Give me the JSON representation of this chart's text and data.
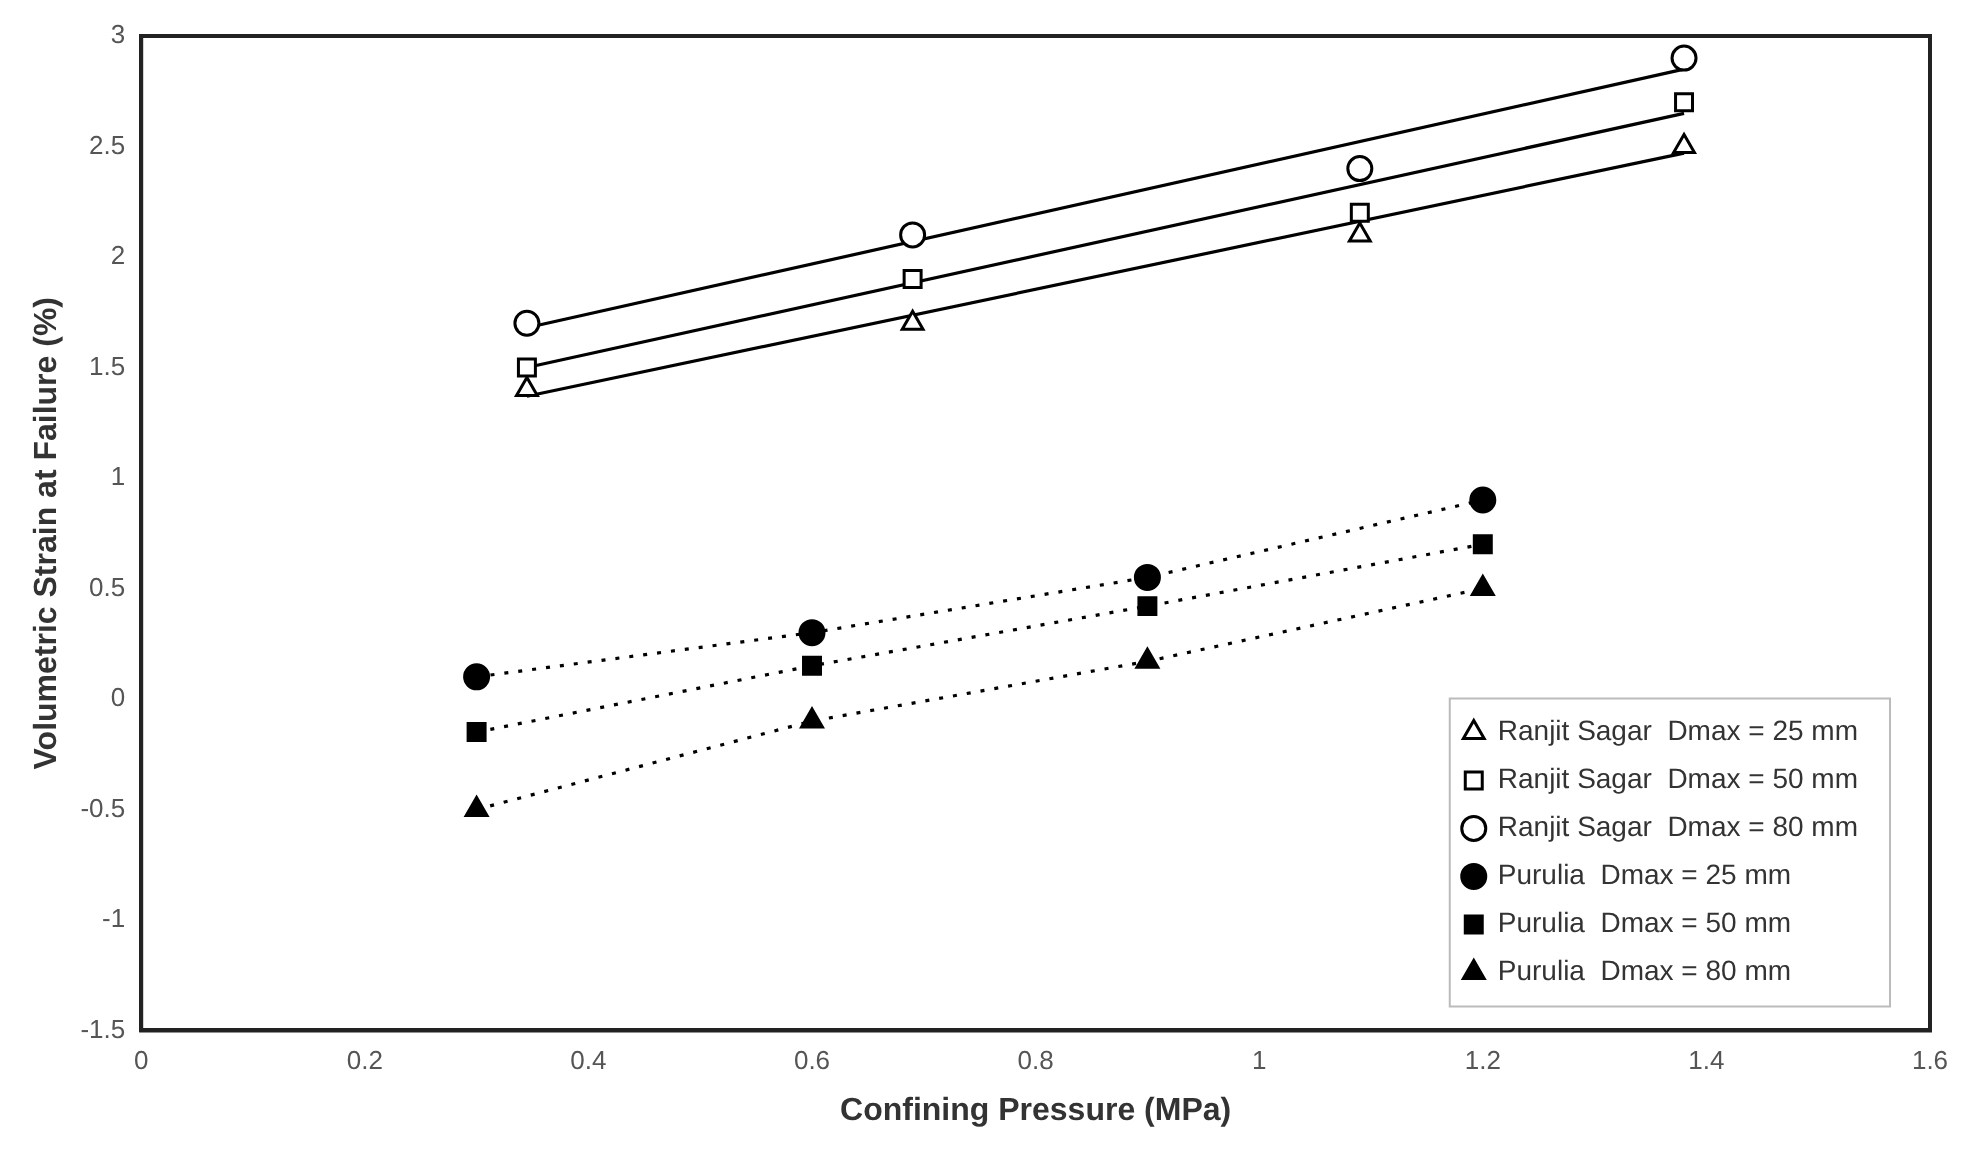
{
  "chart_data": {
    "type": "scatter",
    "xlabel": "Confining Pressure (MPa)",
    "ylabel": "Volumetric Strain at Failure (%)",
    "xlim": [
      0,
      1.6
    ],
    "xticks": [
      0,
      0.2,
      0.4,
      0.6,
      0.8,
      1,
      1.2,
      1.4,
      1.6
    ],
    "ylim": [
      -1.5,
      3
    ],
    "yticks": [
      -1.5,
      -1,
      -0.5,
      0,
      0.5,
      1,
      1.5,
      2,
      2.5,
      3
    ],
    "grid": false,
    "legend": "bottom right",
    "series": [
      {
        "name": "Ranjit Sagar  Dmax = 25 mm",
        "type": "scatter",
        "marker": "triangle",
        "color": "#000000",
        "x": [
          0.345,
          0.69,
          1.09,
          1.38
        ],
        "values": [
          1.4,
          1.7,
          2.1,
          2.5
        ]
      },
      {
        "name": "Ranjit Sagar  Dmax = 50 mm",
        "type": "scatter",
        "marker": "square",
        "color": "#000000",
        "x": [
          0.345,
          0.69,
          1.09,
          1.38
        ],
        "values": [
          1.5,
          1.9,
          2.2,
          2.7
        ]
      },
      {
        "name": "Ranjit Sagar  Dmax = 80 mm",
        "type": "scatter",
        "marker": "circle",
        "color": "#000000",
        "x": [
          0.345,
          0.69,
          1.09,
          1.38
        ],
        "values": [
          1.7,
          2.1,
          2.4,
          2.9
        ]
      },
      {
        "name": "Purulia  Dmax = 25 mm",
        "type": "line",
        "marker": "circle",
        "line_style": "dotted",
        "color": "#000000",
        "x": [
          0.3,
          0.6,
          0.9,
          1.2
        ],
        "values": [
          0.1,
          0.3,
          0.55,
          0.9
        ]
      },
      {
        "name": "Purulia  Dmax = 50 mm",
        "type": "line",
        "marker": "square",
        "line_style": "dotted",
        "color": "#000000",
        "x": [
          0.3,
          0.6,
          0.9,
          1.2
        ],
        "values": [
          -0.15,
          0.15,
          0.42,
          0.7
        ]
      },
      {
        "name": "Purulia  Dmax = 80 mm",
        "type": "line",
        "marker": "triangle",
        "line_style": "dotted",
        "color": "#000000",
        "x": [
          0.3,
          0.6,
          0.9,
          1.2
        ],
        "values": [
          -0.5,
          -0.1,
          0.17,
          0.5
        ]
      },
      {
        "type": "line",
        "marker": "none",
        "line_style": "solid",
        "color": "#000000",
        "x": [
          0.345,
          1.38
        ],
        "values": [
          1.37,
          2.47
        ]
      },
      {
        "type": "line",
        "marker": "none",
        "line_style": "solid",
        "color": "#000000",
        "x": [
          0.345,
          1.38
        ],
        "values": [
          1.5,
          2.65
        ]
      },
      {
        "type": "line",
        "marker": "none",
        "line_style": "solid",
        "color": "#000000",
        "x": [
          0.345,
          1.38
        ],
        "values": [
          1.68,
          2.85
        ]
      }
    ]
  }
}
